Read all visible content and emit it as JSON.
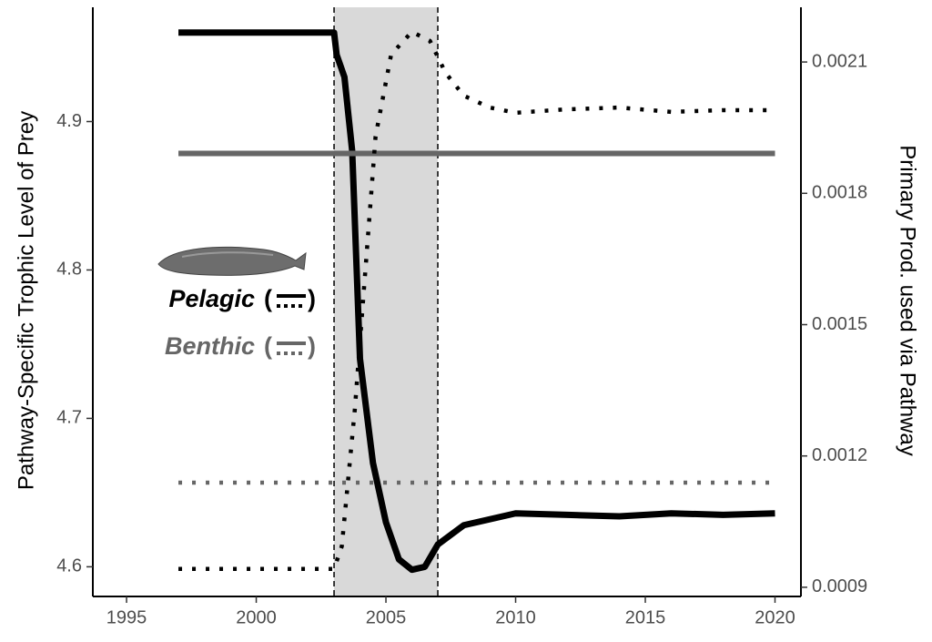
{
  "chart_data": {
    "type": "line",
    "y_label": "Pathway-Specific Trophic Level of Prey",
    "y2_label": "Primary Prod. used via Pathway",
    "xlim": [
      1993.7,
      2021
    ],
    "xticks": [
      1995,
      2000,
      2005,
      2010,
      2015,
      2020
    ],
    "ylim": [
      4.58,
      4.977
    ],
    "yticks": [
      4.6,
      4.7,
      4.8,
      4.9
    ],
    "y2lim": [
      0.000879,
      0.002225
    ],
    "y2ticks": [
      0.0009,
      0.0012,
      0.0015,
      0.0018,
      0.0021
    ],
    "shade": [
      2003,
      2007
    ],
    "legend_brackets": [
      "(",
      ")"
    ],
    "series": [
      {
        "name": "Pelagic",
        "color": "#000000",
        "style": "solid",
        "x": [
          1997,
          2003,
          2003.1,
          2003.4,
          2003.7,
          2004,
          2004.5,
          2005,
          2005.5,
          2006,
          2006.5,
          2007,
          2008,
          2009,
          2010,
          2012,
          2014,
          2016,
          2018,
          2020
        ],
        "values": [
          4.96,
          4.96,
          4.945,
          4.93,
          4.88,
          4.74,
          4.67,
          4.63,
          4.605,
          4.598,
          4.6,
          4.615,
          4.628,
          4.632,
          4.636,
          4.635,
          4.634,
          4.636,
          4.635,
          4.636
        ]
      },
      {
        "name": "Benthic",
        "color": "#666666",
        "style": "solid",
        "x": [
          1997,
          2020
        ],
        "values": [
          4.8785,
          4.8785
        ]
      },
      {
        "color": "#000000",
        "style": "dotted",
        "axis": "y2",
        "x": [
          1997,
          2003,
          2003.3,
          2003.8,
          2004.2,
          2004.6,
          2005.2,
          2006,
          2006.7,
          2007.3,
          2008,
          2009,
          2010,
          2012,
          2014,
          2016,
          2018,
          2020
        ],
        "values": [
          0.000942,
          0.000942,
          0.000994,
          0.001306,
          0.001618,
          0.00193,
          0.002117,
          0.002169,
          0.002148,
          0.002075,
          0.002023,
          0.001996,
          0.001984,
          0.001992,
          0.001996,
          0.001986,
          0.00199,
          0.00199
        ]
      },
      {
        "color": "#666666",
        "style": "dotted",
        "axis": "y2",
        "x": [
          1997,
          2020
        ],
        "values": [
          0.001139,
          0.001139
        ]
      }
    ]
  }
}
